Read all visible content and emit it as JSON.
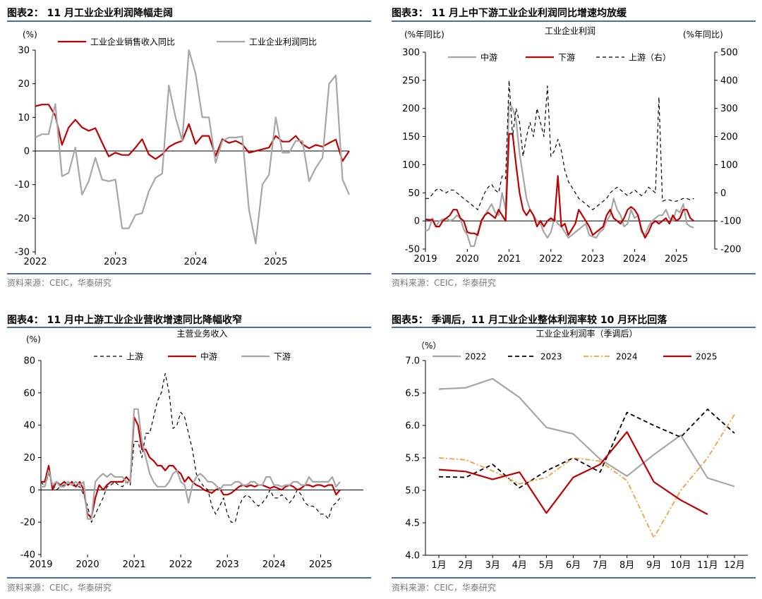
{
  "chart_data": [
    {
      "id": "p1",
      "type": "line",
      "title": "图表2： 11 月工业企业利润降幅走阔",
      "source": "资料来源：CEIC，华泰研究",
      "ylabel": "(%)",
      "ylim": [
        -30,
        30
      ],
      "yticks": [
        -30,
        -20,
        -10,
        0,
        10,
        20,
        30
      ],
      "xlim": [
        2022.0,
        2025.917
      ],
      "xticks": [
        {
          "v": 2022.0,
          "label": "2022"
        },
        {
          "v": 2023.0,
          "label": "2023"
        },
        {
          "v": 2024.0,
          "label": "2024"
        },
        {
          "v": 2025.0,
          "label": "2025"
        }
      ],
      "zero_line": true,
      "legend": "top",
      "series": [
        {
          "name": "工业企业销售收入同比",
          "color": "#c00000",
          "dash": "",
          "width": 2.2,
          "axis": "left",
          "x0": 2022.0,
          "step": 0.08333,
          "values": [
            13.3,
            13.8,
            13.8,
            10.5,
            1.8,
            7.0,
            9.3,
            7.0,
            6.0,
            6.8,
            2.5,
            -1.6,
            -0.5,
            -1.2,
            -1.2,
            1.0,
            3.5,
            -1.0,
            -2.4,
            -1.0,
            1.2,
            2.3,
            3.0,
            8.0,
            2.1,
            4.5,
            4.5,
            -1.5,
            3.5,
            2.4,
            3.0,
            2.0,
            -0.5,
            0.0,
            0.5,
            1.0,
            4.5,
            2.8,
            2.8,
            4.5,
            2.0,
            0.8,
            1.8,
            1.3,
            2.4,
            3.4,
            -3.0,
            0.0
          ]
        },
        {
          "name": "工业企业利润同比",
          "color": "#a6a6a6",
          "dash": "",
          "width": 2.2,
          "axis": "left",
          "x0": 2022.0,
          "step": 0.08333,
          "values": [
            4.0,
            5.0,
            5.0,
            14.0,
            -7.5,
            -6.5,
            1.0,
            -13.0,
            -9.0,
            -2.0,
            -8.5,
            -9.0,
            -8.5,
            -23.0,
            -23.0,
            -19.0,
            -18.5,
            -12.0,
            -8.0,
            -6.7,
            19.5,
            10.0,
            3.0,
            30.0,
            23.0,
            10.0,
            10.0,
            -3.5,
            3.0,
            4.0,
            4.0,
            4.3,
            -17.5,
            -27.5,
            -10.0,
            -7.0,
            10.0,
            -0.5,
            -0.5,
            3.0,
            3.0,
            -9.0,
            -5.0,
            -2.0,
            20.0,
            22.5,
            -8.5,
            -13.0
          ]
        }
      ]
    },
    {
      "id": "p2",
      "type": "line",
      "title": "图表3： 11 月上中下游工业企业利润同比增速均放缓",
      "source": "资料来源：CEIC，华泰研究",
      "subtitle": "工业企业利润",
      "ylabel": "(%年同比)",
      "ylabel_right": "(%年同比)",
      "ylim": [
        -50,
        300
      ],
      "yticks": [
        -50,
        0,
        50,
        100,
        150,
        200,
        250,
        300
      ],
      "ylim_right": [
        -200,
        500
      ],
      "yticks_right": [
        -200,
        -100,
        0,
        100,
        200,
        300,
        400,
        500
      ],
      "xlim": [
        2019.0,
        2025.917
      ],
      "xticks": [
        {
          "v": 2019.0,
          "label": "2019"
        },
        {
          "v": 2020.0,
          "label": "2020"
        },
        {
          "v": 2021.0,
          "label": "2021"
        },
        {
          "v": 2022.0,
          "label": "2022"
        },
        {
          "v": 2023.0,
          "label": "2023"
        },
        {
          "v": 2024.0,
          "label": "2024"
        },
        {
          "v": 2025.0,
          "label": "2025"
        }
      ],
      "zero_line": true,
      "legend": "top",
      "series": [
        {
          "name": "中游",
          "color": "#a6a6a6",
          "dash": "",
          "width": 2.2,
          "axis": "left",
          "x0": 2019.0,
          "step": 0.08333,
          "values": [
            -18,
            -15,
            5,
            -10,
            0,
            3,
            5,
            0,
            3,
            10,
            5,
            -15,
            -25,
            -45,
            -45,
            -20,
            -5,
            10,
            20,
            30,
            15,
            10,
            50,
            20,
            210,
            200,
            180,
            120,
            80,
            40,
            20,
            10,
            0,
            -5,
            -20,
            -30,
            -20,
            5,
            -5,
            -10,
            -20,
            -30,
            -25,
            -20,
            -15,
            -10,
            -5,
            -25,
            -28,
            -30,
            -20,
            -15,
            0,
            10,
            40,
            20,
            10,
            -10,
            -5,
            20,
            5,
            10,
            -20,
            -25,
            -10,
            0,
            5,
            10,
            10,
            20,
            5,
            0,
            20,
            15,
            30,
            -5,
            -10,
            -12
          ]
        },
        {
          "name": "下游",
          "color": "#c00000",
          "dash": "",
          "width": 2.2,
          "axis": "left",
          "x0": 2019.0,
          "step": 0.08333,
          "values": [
            3,
            2,
            2,
            -10,
            -10,
            0,
            5,
            10,
            20,
            20,
            5,
            0,
            -20,
            -22,
            -22,
            -25,
            0,
            10,
            15,
            10,
            5,
            20,
            10,
            0,
            155,
            155,
            100,
            50,
            20,
            10,
            20,
            10,
            -10,
            0,
            -10,
            0,
            5,
            0,
            80,
            -10,
            -5,
            -25,
            -15,
            -5,
            20,
            10,
            0,
            -10,
            -25,
            -20,
            -15,
            -10,
            10,
            20,
            5,
            0,
            -5,
            5,
            20,
            25,
            20,
            10,
            -15,
            -30,
            -20,
            -5,
            0,
            -5,
            0,
            5,
            -5,
            10,
            0,
            5,
            20,
            20,
            5,
            0
          ]
        },
        {
          "name": "上游（右）",
          "color": "#000000",
          "dash": "5,4",
          "width": 1.2,
          "axis": "right",
          "x0": 2019.0,
          "step": 0.08333,
          "values": [
            -20,
            -20,
            -5,
            10,
            15,
            5,
            0,
            10,
            10,
            0,
            -10,
            -20,
            -30,
            -40,
            -50,
            -60,
            -30,
            0,
            20,
            30,
            10,
            0,
            60,
            50,
            400,
            200,
            300,
            250,
            130,
            200,
            250,
            200,
            300,
            250,
            200,
            380,
            130,
            150,
            190,
            150,
            80,
            40,
            20,
            0,
            -20,
            -30,
            -40,
            -50,
            -60,
            -50,
            -40,
            -30,
            -20,
            0,
            10,
            20,
            10,
            0,
            -10,
            0,
            10,
            0,
            -10,
            0,
            20,
            10,
            0,
            340,
            -30,
            -25,
            -25,
            -30,
            -30,
            -25,
            -20,
            -20,
            -25,
            -20
          ]
        }
      ]
    },
    {
      "id": "p3",
      "type": "line",
      "title": "图表4： 11 月中上游工业企业营收增速同比降幅收窄",
      "source": "资料来源：CEIC，华泰研究",
      "subtitle": "主营业务收入",
      "ylabel": "(%)",
      "ylim": [
        -40,
        80
      ],
      "yticks": [
        -40,
        -20,
        0,
        20,
        40,
        60,
        80
      ],
      "xlim": [
        2019.0,
        2025.917
      ],
      "xticks": [
        {
          "v": 2019.0,
          "label": "2019"
        },
        {
          "v": 2020.0,
          "label": "2020"
        },
        {
          "v": 2021.0,
          "label": "2021"
        },
        {
          "v": 2022.0,
          "label": "2022"
        },
        {
          "v": 2023.0,
          "label": "2023"
        },
        {
          "v": 2024.0,
          "label": "2024"
        },
        {
          "v": 2025.0,
          "label": "2025"
        }
      ],
      "zero_line": true,
      "legend": "top",
      "series": [
        {
          "name": "上游",
          "color": "#000000",
          "dash": "5,4",
          "width": 1.2,
          "axis": "left",
          "x0": 2019.0,
          "step": 0.08333,
          "values": [
            5,
            2,
            10,
            3,
            0,
            2,
            3,
            5,
            3,
            2,
            2,
            -3,
            -10,
            -20,
            -15,
            -10,
            -5,
            2,
            3,
            5,
            3,
            2,
            5,
            3,
            30,
            30,
            20,
            35,
            35,
            45,
            55,
            60,
            72,
            60,
            38,
            40,
            48,
            45,
            35,
            25,
            10,
            5,
            2,
            0,
            -10,
            -15,
            -10,
            -5,
            -15,
            -20,
            -20,
            -10,
            -5,
            -3,
            -5,
            -8,
            -10,
            -8,
            -5,
            0,
            -5,
            -5,
            -3,
            -5,
            -8,
            -5,
            0,
            -3,
            -8,
            -10,
            -10,
            -12,
            -15,
            -15,
            -18,
            -10,
            -8,
            -5
          ]
        },
        {
          "name": "中游",
          "color": "#c00000",
          "dash": "",
          "width": 2.2,
          "axis": "left",
          "x0": 2019.0,
          "step": 0.08333,
          "values": [
            5,
            5,
            15,
            0,
            5,
            3,
            5,
            3,
            5,
            2,
            5,
            0,
            -15,
            -17,
            -5,
            3,
            0,
            3,
            5,
            5,
            5,
            5,
            8,
            5,
            45,
            40,
            25,
            25,
            20,
            18,
            15,
            15,
            12,
            15,
            15,
            12,
            10,
            5,
            8,
            5,
            3,
            2,
            0,
            -1,
            -2,
            0,
            1,
            -3,
            -3,
            -2,
            0,
            2,
            3,
            2,
            3,
            2,
            3,
            3,
            2,
            1,
            2,
            1,
            0,
            2,
            3,
            2,
            0,
            1,
            3,
            3,
            2,
            3,
            3,
            2,
            3,
            3,
            -3,
            0
          ]
        },
        {
          "name": "下游",
          "color": "#a6a6a6",
          "dash": "",
          "width": 2.2,
          "axis": "left",
          "x0": 2019.0,
          "step": 0.08333,
          "values": [
            2,
            2,
            12,
            3,
            5,
            2,
            2,
            5,
            3,
            5,
            3,
            5,
            -18,
            -18,
            5,
            8,
            10,
            8,
            10,
            8,
            8,
            8,
            5,
            5,
            50,
            50,
            30,
            20,
            10,
            5,
            2,
            2,
            2,
            5,
            10,
            12,
            5,
            3,
            -8,
            3,
            8,
            10,
            8,
            5,
            5,
            3,
            0,
            3,
            3,
            3,
            5,
            5,
            3,
            3,
            5,
            5,
            3,
            3,
            8,
            8,
            3,
            3,
            2,
            3,
            3,
            5,
            5,
            3,
            3,
            8,
            5,
            5,
            5,
            5,
            5,
            8,
            2,
            5
          ]
        }
      ]
    },
    {
      "id": "p4",
      "type": "line",
      "title": "图表5： 季调后，11 月工业企业整体利润率较 10 月环比回落",
      "source": "资料来源：CEIC，华泰研究",
      "subtitle": "工业企业利润率（季调后）",
      "ylabel": "（%）",
      "ylim": [
        4.0,
        7.0
      ],
      "yticks": [
        4.0,
        4.5,
        5.0,
        5.5,
        6.0,
        6.5,
        7.0
      ],
      "yformat": 1,
      "xlim": [
        0.5,
        12.5
      ],
      "xticks": [
        {
          "v": 1,
          "label": "1月"
        },
        {
          "v": 2,
          "label": "2月"
        },
        {
          "v": 3,
          "label": "3月"
        },
        {
          "v": 4,
          "label": "4月"
        },
        {
          "v": 5,
          "label": "5月"
        },
        {
          "v": 6,
          "label": "6月"
        },
        {
          "v": 7,
          "label": "7月"
        },
        {
          "v": 8,
          "label": "8月"
        },
        {
          "v": 9,
          "label": "9月"
        },
        {
          "v": 10,
          "label": "10月"
        },
        {
          "v": 11,
          "label": "11月"
        },
        {
          "v": 12,
          "label": "12月"
        }
      ],
      "zero_line": false,
      "legend": "top",
      "series": [
        {
          "name": "2022",
          "color": "#a6a6a6",
          "dash": "",
          "width": 2.2,
          "axis": "left",
          "x0": 1,
          "step": 1,
          "values": [
            6.56,
            6.58,
            6.72,
            6.43,
            5.97,
            5.87,
            5.48,
            5.22,
            5.55,
            5.85,
            5.19,
            5.06
          ]
        },
        {
          "name": "2023",
          "color": "#000000",
          "dash": "6,4",
          "width": 1.8,
          "axis": "left",
          "x0": 1,
          "step": 1,
          "values": [
            5.21,
            5.2,
            5.4,
            5.04,
            5.3,
            5.5,
            5.28,
            6.2,
            6.0,
            5.82,
            6.25,
            5.88
          ]
        },
        {
          "name": "2024",
          "color": "#f0a040",
          "dash": "7,3,2,3",
          "width": 1.8,
          "axis": "left",
          "x0": 1,
          "step": 1,
          "values": [
            5.5,
            5.47,
            5.3,
            5.1,
            5.2,
            5.5,
            5.45,
            5.15,
            4.27,
            5.0,
            5.5,
            6.17
          ]
        },
        {
          "name": "2025",
          "color": "#c00000",
          "dash": "",
          "width": 2.2,
          "axis": "left",
          "x0": 1,
          "step": 1,
          "values": [
            5.32,
            5.29,
            5.17,
            5.28,
            4.65,
            5.2,
            5.4,
            5.9,
            5.13,
            4.85,
            4.63
          ]
        }
      ]
    }
  ]
}
